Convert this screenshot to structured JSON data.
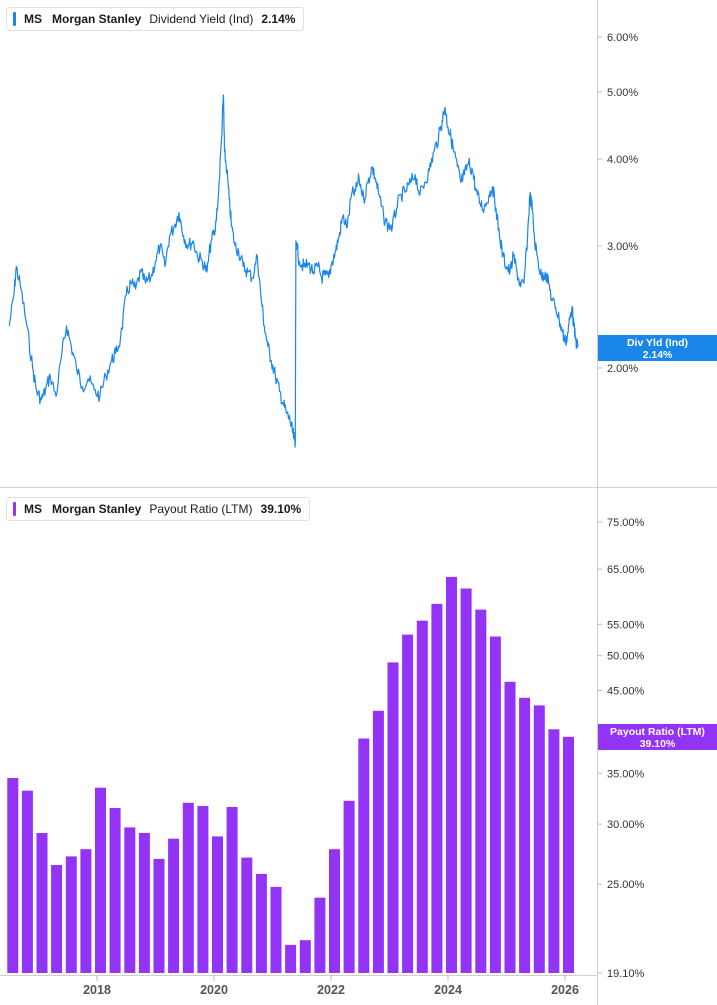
{
  "chart_data": [
    {
      "type": "line",
      "ticker": "MS",
      "company": "Morgan Stanley",
      "metric": "Dividend Yield (Ind)",
      "current_value": "2.14%",
      "tag_label": "Div Yld (Ind)",
      "color": "#1a86ea",
      "scale": "log",
      "ylim": [
        1.45,
        6.6
      ],
      "y_ticks": [
        {
          "value": 2.0,
          "label": "2.00%"
        },
        {
          "value": 3.0,
          "label": "3.00%"
        },
        {
          "value": 4.0,
          "label": "4.00%"
        },
        {
          "value": 5.0,
          "label": "5.00%"
        },
        {
          "value": 6.0,
          "label": "6.00%"
        }
      ],
      "points": [
        [
          2016.5,
          2.3
        ],
        [
          2016.58,
          2.55
        ],
        [
          2016.62,
          2.8
        ],
        [
          2016.7,
          2.6
        ],
        [
          2016.8,
          2.3
        ],
        [
          2016.9,
          2.0
        ],
        [
          2016.97,
          1.85
        ],
        [
          2017.05,
          1.8
        ],
        [
          2017.12,
          1.86
        ],
        [
          2017.2,
          1.95
        ],
        [
          2017.3,
          1.82
        ],
        [
          2017.4,
          2.1
        ],
        [
          2017.48,
          2.3
        ],
        [
          2017.56,
          2.15
        ],
        [
          2017.65,
          2.0
        ],
        [
          2017.75,
          1.88
        ],
        [
          2017.85,
          1.93
        ],
        [
          2017.95,
          1.86
        ],
        [
          2018.05,
          1.82
        ],
        [
          2018.15,
          1.95
        ],
        [
          2018.25,
          2.05
        ],
        [
          2018.32,
          2.1
        ],
        [
          2018.4,
          2.2
        ],
        [
          2018.5,
          2.55
        ],
        [
          2018.58,
          2.65
        ],
        [
          2018.66,
          2.6
        ],
        [
          2018.75,
          2.75
        ],
        [
          2018.83,
          2.65
        ],
        [
          2018.92,
          2.7
        ],
        [
          2019.0,
          2.85
        ],
        [
          2019.08,
          3.0
        ],
        [
          2019.16,
          2.8
        ],
        [
          2019.24,
          3.1
        ],
        [
          2019.32,
          3.2
        ],
        [
          2019.4,
          3.35
        ],
        [
          2019.48,
          3.1
        ],
        [
          2019.56,
          3.0
        ],
        [
          2019.64,
          3.05
        ],
        [
          2019.72,
          2.9
        ],
        [
          2019.8,
          2.85
        ],
        [
          2019.88,
          2.75
        ],
        [
          2019.95,
          3.05
        ],
        [
          2020.02,
          3.15
        ],
        [
          2020.08,
          3.6
        ],
        [
          2020.13,
          4.3
        ],
        [
          2020.16,
          4.95
        ],
        [
          2020.18,
          4.1
        ],
        [
          2020.22,
          3.85
        ],
        [
          2020.26,
          3.5
        ],
        [
          2020.3,
          3.2
        ],
        [
          2020.36,
          3.0
        ],
        [
          2020.42,
          2.95
        ],
        [
          2020.5,
          2.8
        ],
        [
          2020.58,
          2.75
        ],
        [
          2020.66,
          2.7
        ],
        [
          2020.74,
          2.9
        ],
        [
          2020.8,
          2.55
        ],
        [
          2020.86,
          2.3
        ],
        [
          2020.92,
          2.15
        ],
        [
          2020.98,
          2.05
        ],
        [
          2021.05,
          1.95
        ],
        [
          2021.12,
          1.85
        ],
        [
          2021.18,
          1.78
        ],
        [
          2021.24,
          1.72
        ],
        [
          2021.3,
          1.68
        ],
        [
          2021.34,
          1.62
        ],
        [
          2021.37,
          1.58
        ],
        [
          2021.39,
          1.57
        ],
        [
          2021.4,
          3.05
        ],
        [
          2021.46,
          2.85
        ],
        [
          2021.54,
          2.8
        ],
        [
          2021.62,
          2.82
        ],
        [
          2021.7,
          2.75
        ],
        [
          2021.78,
          2.8
        ],
        [
          2021.84,
          2.7
        ],
        [
          2021.9,
          2.72
        ],
        [
          2021.96,
          2.7
        ],
        [
          2022.02,
          2.85
        ],
        [
          2022.08,
          2.95
        ],
        [
          2022.14,
          3.1
        ],
        [
          2022.2,
          3.3
        ],
        [
          2022.28,
          3.2
        ],
        [
          2022.35,
          3.55
        ],
        [
          2022.42,
          3.6
        ],
        [
          2022.48,
          3.75
        ],
        [
          2022.56,
          3.5
        ],
        [
          2022.63,
          3.7
        ],
        [
          2022.7,
          3.9
        ],
        [
          2022.76,
          3.75
        ],
        [
          2022.82,
          3.55
        ],
        [
          2022.9,
          3.3
        ],
        [
          2022.98,
          3.2
        ],
        [
          2023.05,
          3.2
        ],
        [
          2023.12,
          3.4
        ],
        [
          2023.2,
          3.55
        ],
        [
          2023.28,
          3.6
        ],
        [
          2023.36,
          3.7
        ],
        [
          2023.44,
          3.8
        ],
        [
          2023.52,
          3.55
        ],
        [
          2023.6,
          3.7
        ],
        [
          2023.68,
          3.85
        ],
        [
          2023.76,
          4.1
        ],
        [
          2023.84,
          4.3
        ],
        [
          2023.9,
          4.55
        ],
        [
          2023.95,
          4.75
        ],
        [
          2024.0,
          4.45
        ],
        [
          2024.05,
          4.3
        ],
        [
          2024.1,
          4.1
        ],
        [
          2024.16,
          3.9
        ],
        [
          2024.22,
          3.7
        ],
        [
          2024.28,
          3.8
        ],
        [
          2024.35,
          3.95
        ],
        [
          2024.42,
          3.85
        ],
        [
          2024.48,
          3.6
        ],
        [
          2024.55,
          3.45
        ],
        [
          2024.62,
          3.4
        ],
        [
          2024.7,
          3.55
        ],
        [
          2024.76,
          3.65
        ],
        [
          2024.82,
          3.4
        ],
        [
          2024.88,
          3.1
        ],
        [
          2024.94,
          2.9
        ],
        [
          2025.0,
          2.8
        ],
        [
          2025.06,
          2.75
        ],
        [
          2025.12,
          2.9
        ],
        [
          2025.18,
          2.75
        ],
        [
          2025.24,
          2.62
        ],
        [
          2025.3,
          2.65
        ],
        [
          2025.36,
          3.1
        ],
        [
          2025.4,
          3.55
        ],
        [
          2025.44,
          3.4
        ],
        [
          2025.48,
          3.05
        ],
        [
          2025.54,
          2.85
        ],
        [
          2025.6,
          2.7
        ],
        [
          2025.66,
          2.75
        ],
        [
          2025.72,
          2.65
        ],
        [
          2025.78,
          2.5
        ],
        [
          2025.84,
          2.45
        ],
        [
          2025.9,
          2.35
        ],
        [
          2025.96,
          2.25
        ],
        [
          2026.0,
          2.18
        ],
        [
          2026.04,
          2.22
        ],
        [
          2026.08,
          2.35
        ],
        [
          2026.12,
          2.45
        ],
        [
          2026.15,
          2.3
        ],
        [
          2026.18,
          2.2
        ],
        [
          2026.22,
          2.14
        ]
      ]
    },
    {
      "type": "bar",
      "ticker": "MS",
      "company": "Morgan Stanley",
      "metric": "Payout Ratio (LTM)",
      "current_value": "39.10%",
      "tag_label": "Payout Ratio (LTM)",
      "color": "#9333f5",
      "scale": "log",
      "ylim": [
        19.1,
        81
      ],
      "y_ticks": [
        {
          "value": 19.1,
          "label": "19.10%"
        },
        {
          "value": 25,
          "label": "25.00%"
        },
        {
          "value": 30,
          "label": "30.00%"
        },
        {
          "value": 35,
          "label": "35.00%"
        },
        {
          "value": 45,
          "label": "45.00%"
        },
        {
          "value": 50,
          "label": "50.00%"
        },
        {
          "value": 55,
          "label": "55.00%"
        },
        {
          "value": 65,
          "label": "65.00%"
        },
        {
          "value": 75,
          "label": "75.00%"
        }
      ],
      "x_ticks": [
        {
          "value": 2018,
          "label": "2018"
        },
        {
          "value": 2020,
          "label": "2020"
        },
        {
          "value": 2022,
          "label": "2022"
        },
        {
          "value": 2024,
          "label": "2024"
        },
        {
          "value": 2026,
          "label": "2026"
        }
      ],
      "bars": [
        [
          2016.56,
          34.5
        ],
        [
          2016.81,
          33.2
        ],
        [
          2017.06,
          29.2
        ],
        [
          2017.31,
          26.5
        ],
        [
          2017.56,
          27.2
        ],
        [
          2017.81,
          27.8
        ],
        [
          2018.06,
          33.5
        ],
        [
          2018.31,
          31.5
        ],
        [
          2018.56,
          29.7
        ],
        [
          2018.81,
          29.2
        ],
        [
          2019.06,
          27.0
        ],
        [
          2019.31,
          28.7
        ],
        [
          2019.56,
          32.0
        ],
        [
          2019.81,
          31.7
        ],
        [
          2020.06,
          28.9
        ],
        [
          2020.31,
          31.6
        ],
        [
          2020.56,
          27.1
        ],
        [
          2020.81,
          25.8
        ],
        [
          2021.06,
          24.8
        ],
        [
          2021.31,
          20.8
        ],
        [
          2021.56,
          21.1
        ],
        [
          2021.81,
          24.0
        ],
        [
          2022.06,
          27.8
        ],
        [
          2022.31,
          32.2
        ],
        [
          2022.56,
          38.9
        ],
        [
          2022.81,
          42.3
        ],
        [
          2023.06,
          49.0
        ],
        [
          2023.31,
          53.3
        ],
        [
          2023.56,
          55.6
        ],
        [
          2023.81,
          58.5
        ],
        [
          2024.06,
          63.5
        ],
        [
          2024.31,
          61.3
        ],
        [
          2024.56,
          57.5
        ],
        [
          2024.81,
          53.0
        ],
        [
          2025.06,
          46.2
        ],
        [
          2025.31,
          44.0
        ],
        [
          2025.56,
          43.0
        ],
        [
          2025.81,
          40.0
        ],
        [
          2026.06,
          39.1
        ]
      ]
    }
  ]
}
